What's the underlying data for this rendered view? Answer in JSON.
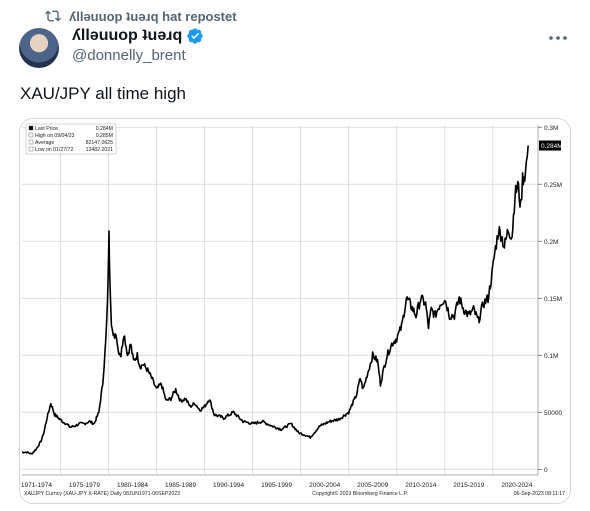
{
  "repost": {
    "icon": "repost-icon",
    "text": "ʎllǝuuop ʇuǝɹq hat repostet"
  },
  "author": {
    "display_name": "ʎllǝuuop ʇuǝɹq",
    "handle": "@donnelly_brent",
    "verified_icon": "verified-badge-icon",
    "avatar_icon": "avatar"
  },
  "more_icon": "more-horizontal-icon",
  "tweet": {
    "text": "XAU/JPY all time high"
  },
  "chart_data": {
    "type": "line",
    "title": "",
    "xlabel": "",
    "ylabel": "",
    "ylim": [
      -5000,
      302000
    ],
    "xlim": [
      1971.0,
      2024.7
    ],
    "legend": [
      {
        "label": "Last Price",
        "value": "0.284M"
      },
      {
        "label": "High on 09/04/23",
        "value": "0.285M"
      },
      {
        "label": "Average",
        "value": "82147.0625"
      },
      {
        "label": "Low on 01/27/72",
        "value": "13482.2021"
      }
    ],
    "last_price_tag": "0.284M",
    "y_ticks": [
      {
        "value": 300000,
        "label": "0.3M"
      },
      {
        "value": 250000,
        "label": "0.25M"
      },
      {
        "value": 200000,
        "label": "0.2M"
      },
      {
        "value": 150000,
        "label": "0.15M"
      },
      {
        "value": 100000,
        "label": "0.1M"
      },
      {
        "value": 50000,
        "label": "50000"
      },
      {
        "value": 0,
        "label": "0"
      }
    ],
    "x_ticks": [
      {
        "center": 1972.5,
        "label": "1971-1974"
      },
      {
        "center": 1977.5,
        "label": "1975-1979"
      },
      {
        "center": 1982.5,
        "label": "1980-1984"
      },
      {
        "center": 1987.5,
        "label": "1985-1989"
      },
      {
        "center": 1992.5,
        "label": "1990-1994"
      },
      {
        "center": 1997.5,
        "label": "1995-1999"
      },
      {
        "center": 2002.5,
        "label": "2000-2004"
      },
      {
        "center": 2007.5,
        "label": "2005-2009"
      },
      {
        "center": 2012.5,
        "label": "2010-2014"
      },
      {
        "center": 2017.5,
        "label": "2015-2019"
      },
      {
        "center": 2022.5,
        "label": "2020-2024"
      }
    ],
    "footer": {
      "left": "XAUJPY Curncy (XAU-JPY X-RATE)  Daily 08JUN1971-06SEP2023",
      "center": "Copyright© 2023 Bloomberg Finance L.P.",
      "right": "06-Sep-2023 08:11:17"
    },
    "series": [
      {
        "x": [
          1971.0,
          1971.5,
          1972.0,
          1972.5,
          1973.0,
          1973.3,
          1973.6,
          1974.0,
          1974.4,
          1974.8,
          1975.2,
          1975.6,
          1976.0,
          1976.5,
          1977.0,
          1977.5,
          1978.0,
          1978.5,
          1979.0,
          1979.4,
          1979.7,
          1979.9,
          1980.05,
          1980.15,
          1980.3,
          1980.5,
          1980.8,
          1981.0,
          1981.3,
          1981.6,
          1982.0,
          1982.3,
          1982.6,
          1983.0,
          1983.3,
          1983.6,
          1984.0,
          1984.5,
          1985.0,
          1985.5,
          1986.0,
          1986.5,
          1987.0,
          1987.5,
          1988.0,
          1988.5,
          1989.0,
          1989.5,
          1990.0,
          1990.5,
          1991.0,
          1992.0,
          1993.0,
          1994.0,
          1995.0,
          1996.0,
          1997.0,
          1998.0,
          1999.0,
          1999.8,
          2000.5,
          2001.0,
          2001.5,
          2002.0,
          2003.0,
          2004.0,
          2005.0,
          2005.8,
          2006.2,
          2006.5,
          2007.0,
          2007.5,
          2008.0,
          2008.3,
          2008.7,
          2009.0,
          2009.5,
          2010.0,
          2010.5,
          2011.0,
          2011.4,
          2011.7,
          2012.0,
          2012.5,
          2013.0,
          2013.3,
          2013.6,
          2014.0,
          2014.5,
          2015.0,
          2015.5,
          2016.0,
          2016.5,
          2017.0,
          2017.5,
          2018.0,
          2018.5,
          2019.0,
          2019.5,
          2019.9,
          2020.2,
          2020.6,
          2020.9,
          2021.2,
          2021.6,
          2022.0,
          2022.3,
          2022.6,
          2022.9,
          2023.1,
          2023.4,
          2023.68
        ],
        "y": [
          15000,
          15000,
          13482,
          18000,
          25000,
          33000,
          45000,
          58000,
          48000,
          45000,
          42000,
          40000,
          37000,
          38000,
          40000,
          40000,
          42000,
          40000,
          50000,
          75000,
          110000,
          145000,
          205000,
          170000,
          130000,
          115000,
          120000,
          105000,
          100000,
          120000,
          100000,
          110000,
          95000,
          100000,
          90000,
          92000,
          88000,
          80000,
          70000,
          75000,
          60000,
          62000,
          70000,
          60000,
          62000,
          55000,
          58000,
          52000,
          55000,
          62000,
          48000,
          45000,
          50000,
          42000,
          40000,
          42000,
          38000,
          35000,
          40000,
          32000,
          30000,
          28000,
          33000,
          38000,
          42000,
          44000,
          50000,
          65000,
          80000,
          70000,
          85000,
          100000,
          95000,
          75000,
          90000,
          100000,
          110000,
          115000,
          125000,
          150000,
          145000,
          140000,
          135000,
          150000,
          145000,
          125000,
          140000,
          135000,
          145000,
          150000,
          135000,
          135000,
          150000,
          140000,
          135000,
          140000,
          130000,
          145000,
          150000,
          170000,
          190000,
          210000,
          205000,
          195000,
          210000,
          205000,
          240000,
          250000,
          230000,
          255000,
          260000,
          284000
        ]
      }
    ]
  }
}
